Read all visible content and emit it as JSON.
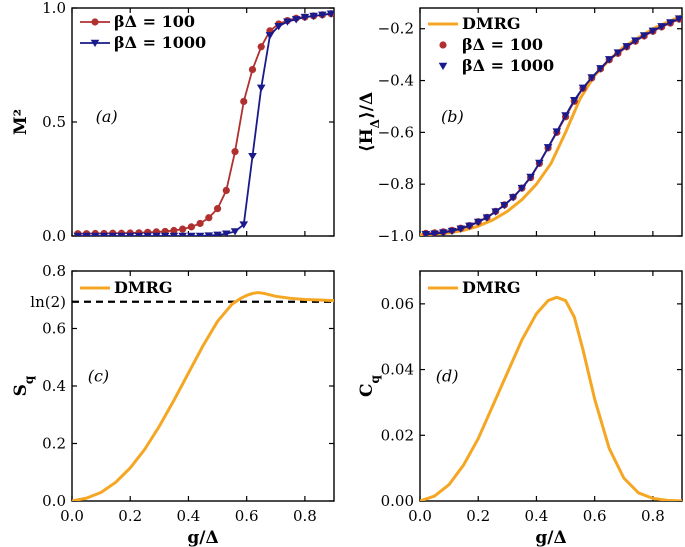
{
  "colors": {
    "red": "#b03030",
    "navy": "#1a1a8c",
    "orange": "#f5a623",
    "black": "#000000"
  },
  "chart_data": [
    {
      "type": "line",
      "panel": "a",
      "annotation": "(a)",
      "ylabel": "M²",
      "xlabel": "",
      "xlim": [
        0.0,
        0.9
      ],
      "ylim": [
        0.0,
        1.0
      ],
      "xticks": [
        0.0,
        0.2,
        0.4,
        0.6,
        0.8
      ],
      "xtick_labels": [
        "",
        "",
        "",
        "",
        ""
      ],
      "yticks": [
        0.0,
        0.5,
        1.0
      ],
      "ytick_labels": [
        "0.0",
        "0.5",
        "1.0"
      ],
      "legend": "top-left",
      "series": [
        {
          "name": "βΔ = 100",
          "legend_label": "βΔ = 100",
          "color": "#b03030",
          "marker": "circle",
          "x": [
            0.02,
            0.05,
            0.08,
            0.11,
            0.14,
            0.17,
            0.2,
            0.23,
            0.26,
            0.29,
            0.32,
            0.35,
            0.38,
            0.41,
            0.44,
            0.47,
            0.5,
            0.53,
            0.56,
            0.59,
            0.62,
            0.65,
            0.68,
            0.71,
            0.74,
            0.77,
            0.8,
            0.83,
            0.86,
            0.89
          ],
          "y": [
            0.01,
            0.01,
            0.011,
            0.011,
            0.012,
            0.012,
            0.013,
            0.014,
            0.016,
            0.018,
            0.02,
            0.024,
            0.03,
            0.04,
            0.055,
            0.08,
            0.12,
            0.2,
            0.37,
            0.59,
            0.73,
            0.83,
            0.9,
            0.93,
            0.945,
            0.955,
            0.96,
            0.965,
            0.97,
            0.975
          ]
        },
        {
          "name": "βΔ = 1000",
          "legend_label": "βΔ = 1000",
          "color": "#1a1a8c",
          "marker": "triangle-down",
          "x": [
            0.02,
            0.05,
            0.08,
            0.11,
            0.14,
            0.17,
            0.2,
            0.23,
            0.26,
            0.29,
            0.32,
            0.35,
            0.38,
            0.41,
            0.44,
            0.47,
            0.5,
            0.53,
            0.56,
            0.59,
            0.62,
            0.65,
            0.68,
            0.71,
            0.74,
            0.77,
            0.8,
            0.83,
            0.86,
            0.89
          ],
          "y": [
            0.0,
            0.0,
            0.0,
            0.0,
            0.0,
            0.0,
            0.0,
            0.0,
            0.0,
            0.0,
            0.0,
            0.0,
            0.0,
            0.0,
            0.0,
            0.002,
            0.005,
            0.01,
            0.02,
            0.05,
            0.35,
            0.65,
            0.88,
            0.92,
            0.94,
            0.95,
            0.96,
            0.965,
            0.97,
            0.975
          ]
        }
      ]
    },
    {
      "type": "line",
      "panel": "b",
      "annotation": "(b)",
      "ylabel": "⟨H_Δ⟩/Δ",
      "ylabel_parts": {
        "prefix": "⟨H",
        "sub": "Δ",
        "suffix": "⟩/Δ"
      },
      "xlabel": "",
      "xlim": [
        0.0,
        0.9
      ],
      "ylim": [
        -1.0,
        -0.12
      ],
      "xticks": [
        0.0,
        0.2,
        0.4,
        0.6,
        0.8
      ],
      "xtick_labels": [
        "",
        "",
        "",
        "",
        ""
      ],
      "yticks": [
        -1.0,
        -0.8,
        -0.6,
        -0.4,
        -0.2
      ],
      "ytick_labels": [
        "−1.0",
        "−0.8",
        "−0.6",
        "−0.4",
        "−0.2"
      ],
      "legend": "top-left",
      "series": [
        {
          "name": "DMRG",
          "legend_label": "DMRG",
          "color": "#f5a623",
          "marker": "none",
          "x": [
            0.0,
            0.05,
            0.1,
            0.15,
            0.2,
            0.25,
            0.3,
            0.35,
            0.4,
            0.45,
            0.5,
            0.55,
            0.6,
            0.65,
            0.7,
            0.75,
            0.8,
            0.85,
            0.9
          ],
          "y": [
            -0.995,
            -0.993,
            -0.988,
            -0.978,
            -0.962,
            -0.938,
            -0.905,
            -0.86,
            -0.8,
            -0.72,
            -0.6,
            -0.47,
            -0.38,
            -0.32,
            -0.27,
            -0.235,
            -0.2,
            -0.175,
            -0.15
          ]
        },
        {
          "name": "βΔ = 100",
          "legend_label": "βΔ = 100",
          "color": "#b03030",
          "marker": "circle",
          "x": [
            0.02,
            0.05,
            0.08,
            0.11,
            0.14,
            0.17,
            0.2,
            0.23,
            0.26,
            0.29,
            0.32,
            0.35,
            0.38,
            0.41,
            0.44,
            0.47,
            0.5,
            0.53,
            0.56,
            0.59,
            0.62,
            0.65,
            0.68,
            0.71,
            0.74,
            0.77,
            0.8,
            0.83,
            0.86,
            0.89
          ],
          "y": [
            -0.99,
            -0.988,
            -0.984,
            -0.978,
            -0.97,
            -0.96,
            -0.945,
            -0.928,
            -0.905,
            -0.88,
            -0.85,
            -0.815,
            -0.775,
            -0.72,
            -0.66,
            -0.6,
            -0.54,
            -0.48,
            -0.43,
            -0.39,
            -0.355,
            -0.32,
            -0.295,
            -0.27,
            -0.248,
            -0.228,
            -0.21,
            -0.193,
            -0.178,
            -0.163
          ]
        },
        {
          "name": "βΔ = 1000",
          "legend_label": "βΔ = 1000",
          "color": "#1a1a8c",
          "marker": "triangle-down",
          "x": [
            0.02,
            0.05,
            0.08,
            0.11,
            0.14,
            0.17,
            0.2,
            0.23,
            0.26,
            0.29,
            0.32,
            0.35,
            0.38,
            0.41,
            0.44,
            0.47,
            0.5,
            0.53,
            0.56,
            0.59,
            0.62,
            0.65,
            0.68,
            0.71,
            0.74,
            0.77,
            0.8,
            0.83,
            0.86,
            0.89
          ],
          "y": [
            -0.993,
            -0.991,
            -0.987,
            -0.981,
            -0.972,
            -0.961,
            -0.946,
            -0.929,
            -0.906,
            -0.881,
            -0.851,
            -0.815,
            -0.772,
            -0.718,
            -0.658,
            -0.597,
            -0.535,
            -0.476,
            -0.428,
            -0.388,
            -0.353,
            -0.318,
            -0.292,
            -0.268,
            -0.246,
            -0.226,
            -0.208,
            -0.191,
            -0.176,
            -0.161
          ]
        }
      ]
    },
    {
      "type": "line",
      "panel": "c",
      "annotation": "(c)",
      "ylabel": "S_q",
      "ylabel_parts": {
        "prefix": "S",
        "sub": "q",
        "suffix": ""
      },
      "xlabel": "g/Δ",
      "xlim": [
        0.0,
        0.9
      ],
      "ylim": [
        0.0,
        0.8
      ],
      "xticks": [
        0.0,
        0.2,
        0.4,
        0.6,
        0.8
      ],
      "xtick_labels": [
        "0.0",
        "0.2",
        "0.4",
        "0.6",
        "0.8"
      ],
      "yticks": [
        0.0,
        0.2,
        0.4,
        0.6,
        0.8
      ],
      "ytick_labels": [
        "0.0",
        "0.2",
        "0.4",
        "0.6",
        "0.8"
      ],
      "extra_ytick": {
        "value": 0.693,
        "label": "ln(2)"
      },
      "hline": {
        "y": 0.693,
        "style": "dashed",
        "color": "#000000"
      },
      "legend": "top-left",
      "series": [
        {
          "name": "DMRG",
          "legend_label": "DMRG",
          "color": "#f5a623",
          "marker": "none",
          "x": [
            0.0,
            0.05,
            0.1,
            0.15,
            0.2,
            0.25,
            0.3,
            0.35,
            0.4,
            0.45,
            0.5,
            0.55,
            0.58,
            0.6,
            0.62,
            0.64,
            0.66,
            0.7,
            0.75,
            0.8,
            0.85,
            0.9
          ],
          "y": [
            0.0,
            0.01,
            0.03,
            0.065,
            0.115,
            0.18,
            0.26,
            0.35,
            0.445,
            0.54,
            0.625,
            0.685,
            0.705,
            0.715,
            0.722,
            0.725,
            0.722,
            0.712,
            0.705,
            0.701,
            0.699,
            0.697
          ]
        }
      ]
    },
    {
      "type": "line",
      "panel": "d",
      "annotation": "(d)",
      "ylabel": "C_q",
      "ylabel_parts": {
        "prefix": "C",
        "sub": "q",
        "suffix": ""
      },
      "xlabel": "g/Δ",
      "xlim": [
        0.0,
        0.9
      ],
      "ylim": [
        0.0,
        0.07
      ],
      "xticks": [
        0.0,
        0.2,
        0.4,
        0.6,
        0.8
      ],
      "xtick_labels": [
        "0.0",
        "0.2",
        "0.4",
        "0.6",
        "0.8"
      ],
      "yticks": [
        0.0,
        0.02,
        0.04,
        0.06
      ],
      "ytick_labels": [
        "0.00",
        "0.02",
        "0.04",
        "0.06"
      ],
      "legend": "top-left",
      "series": [
        {
          "name": "DMRG",
          "legend_label": "DMRG",
          "color": "#f5a623",
          "marker": "none",
          "x": [
            0.0,
            0.05,
            0.1,
            0.15,
            0.2,
            0.25,
            0.3,
            0.35,
            0.4,
            0.44,
            0.47,
            0.5,
            0.53,
            0.56,
            0.6,
            0.65,
            0.7,
            0.75,
            0.8,
            0.85,
            0.9
          ],
          "y": [
            0.0,
            0.0015,
            0.005,
            0.011,
            0.019,
            0.029,
            0.039,
            0.049,
            0.057,
            0.061,
            0.062,
            0.061,
            0.056,
            0.046,
            0.031,
            0.016,
            0.007,
            0.0025,
            0.0008,
            0.0002,
            0.0
          ]
        }
      ]
    }
  ]
}
